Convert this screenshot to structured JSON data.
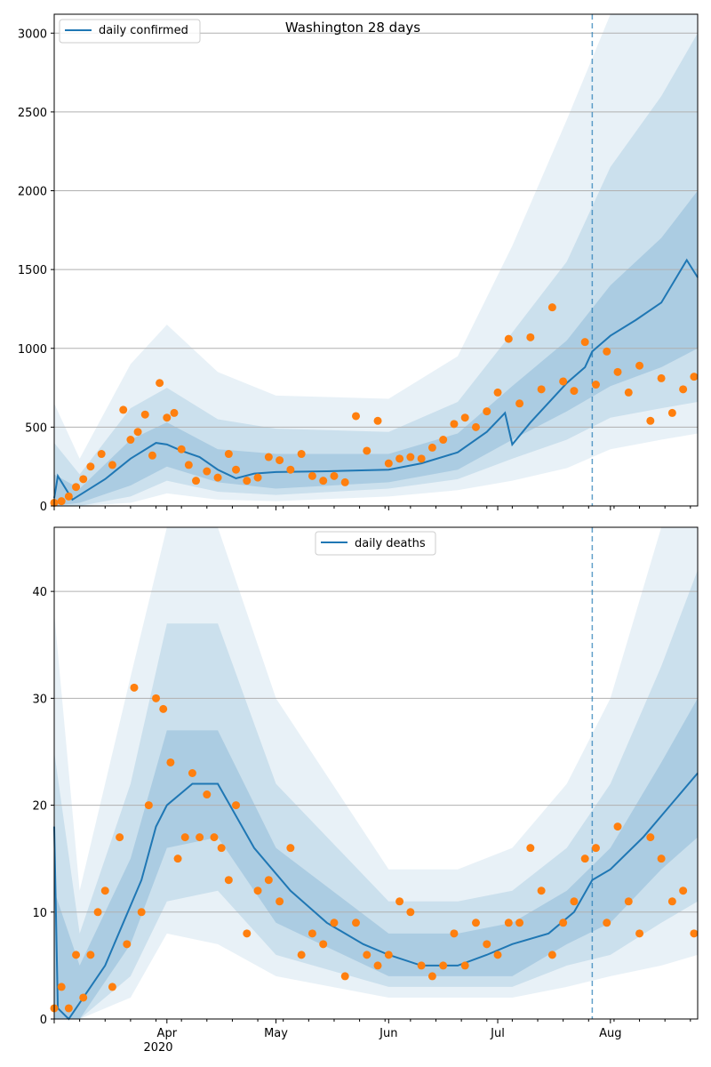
{
  "colors": {
    "line": "#1f77b4",
    "points": "#ff7f0e",
    "band": "#1f77b4",
    "grid": "#b0b0b0",
    "vline": "#1f77b4"
  },
  "chart_data": [
    {
      "type": "line",
      "title": "Washington 28 days",
      "legend_position": "top-left",
      "grid": "horizontal",
      "x_start_date": "2020-03-01",
      "x_end_date": "2020-08-25",
      "vline_date": "2020-07-27",
      "ylim": [
        0,
        3120
      ],
      "yticks": [
        0,
        500,
        1000,
        1500,
        2000,
        2500,
        3000
      ],
      "series": [
        {
          "name": "daily confirmed",
          "kind": "line",
          "x": [
            "2020-03-01",
            "2020-03-02",
            "2020-03-06",
            "2020-03-15",
            "2020-03-22",
            "2020-03-29",
            "2020-04-01",
            "2020-04-05",
            "2020-04-10",
            "2020-04-15",
            "2020-04-20",
            "2020-04-25",
            "2020-05-01",
            "2020-05-15",
            "2020-06-01",
            "2020-06-10",
            "2020-06-20",
            "2020-06-28",
            "2020-07-03",
            "2020-07-05",
            "2020-07-10",
            "2020-07-20",
            "2020-07-25",
            "2020-07-27",
            "2020-08-01",
            "2020-08-08",
            "2020-08-15",
            "2020-08-22",
            "2020-08-25"
          ],
          "y": [
            50,
            190,
            40,
            170,
            300,
            400,
            390,
            350,
            310,
            230,
            175,
            205,
            215,
            220,
            230,
            270,
            340,
            470,
            590,
            390,
            530,
            780,
            880,
            980,
            1080,
            1180,
            1290,
            1560,
            1450
          ]
        },
        {
          "name": "",
          "kind": "points",
          "x": [
            "2020-03-01",
            "2020-03-03",
            "2020-03-05",
            "2020-03-07",
            "2020-03-09",
            "2020-03-11",
            "2020-03-14",
            "2020-03-17",
            "2020-03-20",
            "2020-03-22",
            "2020-03-24",
            "2020-03-26",
            "2020-03-28",
            "2020-03-30",
            "2020-04-01",
            "2020-04-03",
            "2020-04-05",
            "2020-04-07",
            "2020-04-09",
            "2020-04-12",
            "2020-04-15",
            "2020-04-18",
            "2020-04-20",
            "2020-04-23",
            "2020-04-26",
            "2020-04-29",
            "2020-05-02",
            "2020-05-05",
            "2020-05-08",
            "2020-05-11",
            "2020-05-14",
            "2020-05-17",
            "2020-05-20",
            "2020-05-23",
            "2020-05-26",
            "2020-05-29",
            "2020-06-01",
            "2020-06-04",
            "2020-06-07",
            "2020-06-10",
            "2020-06-13",
            "2020-06-16",
            "2020-06-19",
            "2020-06-22",
            "2020-06-25",
            "2020-06-28",
            "2020-07-01",
            "2020-07-04",
            "2020-07-07",
            "2020-07-10",
            "2020-07-13",
            "2020-07-16",
            "2020-07-19",
            "2020-07-22",
            "2020-07-25",
            "2020-07-28",
            "2020-07-31",
            "2020-08-03",
            "2020-08-06",
            "2020-08-09",
            "2020-08-12",
            "2020-08-15",
            "2020-08-18",
            "2020-08-21",
            "2020-08-24"
          ],
          "y": [
            20,
            30,
            60,
            120,
            170,
            250,
            330,
            260,
            610,
            420,
            470,
            580,
            320,
            780,
            560,
            590,
            360,
            260,
            160,
            220,
            180,
            330,
            230,
            160,
            180,
            310,
            290,
            230,
            330,
            190,
            160,
            190,
            150,
            570,
            350,
            540,
            270,
            300,
            310,
            300,
            370,
            420,
            520,
            560,
            500,
            600,
            720,
            1060,
            650,
            1070,
            740,
            1260,
            790,
            730,
            1040,
            770,
            980,
            850,
            720,
            890,
            540,
            810,
            590,
            740,
            820
          ]
        }
      ],
      "bands": [
        {
          "x": [
            "2020-03-01",
            "2020-03-08",
            "2020-03-22",
            "2020-04-01",
            "2020-04-15",
            "2020-05-01",
            "2020-06-01",
            "2020-06-20",
            "2020-07-05",
            "2020-07-20",
            "2020-08-01",
            "2020-08-15",
            "2020-08-25"
          ],
          "lo": [
            0,
            20,
            130,
            250,
            150,
            110,
            150,
            230,
            420,
            600,
            760,
            880,
            1000
          ],
          "hi": [
            200,
            110,
            420,
            530,
            360,
            330,
            330,
            460,
            760,
            1050,
            1400,
            1700,
            2000
          ]
        },
        {
          "x": [
            "2020-03-01",
            "2020-03-08",
            "2020-03-22",
            "2020-04-01",
            "2020-04-15",
            "2020-05-01",
            "2020-06-01",
            "2020-06-20",
            "2020-07-05",
            "2020-07-20",
            "2020-08-01",
            "2020-08-15",
            "2020-08-25"
          ],
          "lo": [
            0,
            0,
            60,
            160,
            90,
            70,
            110,
            170,
            300,
            420,
            560,
            620,
            660
          ],
          "hi": [
            400,
            200,
            620,
            750,
            550,
            490,
            470,
            660,
            1100,
            1550,
            2150,
            2600,
            3000
          ]
        },
        {
          "x": [
            "2020-03-01",
            "2020-03-08",
            "2020-03-22",
            "2020-04-01",
            "2020-04-15",
            "2020-05-01",
            "2020-06-01",
            "2020-06-20",
            "2020-07-05",
            "2020-07-20",
            "2020-08-01",
            "2020-08-15",
            "2020-08-25"
          ],
          "lo": [
            0,
            0,
            20,
            80,
            40,
            30,
            60,
            100,
            160,
            240,
            360,
            420,
            460
          ],
          "hi": [
            650,
            300,
            900,
            1150,
            850,
            700,
            680,
            950,
            1650,
            2450,
            3120,
            3120,
            3120
          ]
        }
      ]
    },
    {
      "type": "line",
      "title": "",
      "legend_position": "top-center",
      "grid": "horizontal",
      "x_start_date": "2020-03-01",
      "x_end_date": "2020-08-25",
      "vline_date": "2020-07-27",
      "ylim": [
        0,
        46
      ],
      "yticks": [
        0,
        10,
        20,
        30,
        40
      ],
      "series": [
        {
          "name": "daily deaths",
          "kind": "line",
          "x": [
            "2020-03-01",
            "2020-03-02",
            "2020-03-05",
            "2020-03-15",
            "2020-03-25",
            "2020-03-29",
            "2020-04-01",
            "2020-04-08",
            "2020-04-15",
            "2020-04-25",
            "2020-05-05",
            "2020-05-15",
            "2020-05-25",
            "2020-06-01",
            "2020-06-10",
            "2020-06-20",
            "2020-06-28",
            "2020-07-05",
            "2020-07-15",
            "2020-07-22",
            "2020-07-27",
            "2020-08-01",
            "2020-08-10",
            "2020-08-20",
            "2020-08-25"
          ],
          "y": [
            18,
            1,
            0,
            5,
            13,
            18,
            20,
            22,
            22,
            16,
            12,
            9,
            7,
            6,
            5,
            5,
            6,
            7,
            8,
            10,
            13,
            14,
            17,
            21,
            23
          ]
        },
        {
          "name": "",
          "kind": "points",
          "x": [
            "2020-03-01",
            "2020-03-03",
            "2020-03-05",
            "2020-03-07",
            "2020-03-09",
            "2020-03-11",
            "2020-03-13",
            "2020-03-15",
            "2020-03-17",
            "2020-03-19",
            "2020-03-21",
            "2020-03-23",
            "2020-03-25",
            "2020-03-27",
            "2020-03-29",
            "2020-03-31",
            "2020-04-02",
            "2020-04-04",
            "2020-04-06",
            "2020-04-08",
            "2020-04-10",
            "2020-04-12",
            "2020-04-14",
            "2020-04-16",
            "2020-04-18",
            "2020-04-20",
            "2020-04-23",
            "2020-04-26",
            "2020-04-29",
            "2020-05-02",
            "2020-05-05",
            "2020-05-08",
            "2020-05-11",
            "2020-05-14",
            "2020-05-17",
            "2020-05-20",
            "2020-05-23",
            "2020-05-26",
            "2020-05-29",
            "2020-06-01",
            "2020-06-04",
            "2020-06-07",
            "2020-06-10",
            "2020-06-13",
            "2020-06-16",
            "2020-06-19",
            "2020-06-22",
            "2020-06-25",
            "2020-06-28",
            "2020-07-01",
            "2020-07-04",
            "2020-07-07",
            "2020-07-10",
            "2020-07-13",
            "2020-07-16",
            "2020-07-19",
            "2020-07-22",
            "2020-07-25",
            "2020-07-28",
            "2020-07-31",
            "2020-08-03",
            "2020-08-06",
            "2020-08-09",
            "2020-08-12",
            "2020-08-15",
            "2020-08-18",
            "2020-08-21",
            "2020-08-24"
          ],
          "y": [
            1,
            3,
            1,
            6,
            2,
            6,
            10,
            12,
            3,
            17,
            7,
            31,
            10,
            20,
            30,
            29,
            24,
            15,
            17,
            23,
            17,
            21,
            17,
            16,
            13,
            20,
            8,
            12,
            13,
            11,
            16,
            6,
            8,
            7,
            9,
            4,
            9,
            6,
            5,
            6,
            11,
            10,
            5,
            4,
            5,
            8,
            5,
            9,
            7,
            6,
            9,
            9,
            16,
            12,
            6,
            9,
            11,
            15,
            16,
            9,
            18,
            11,
            8,
            17,
            15,
            11,
            12,
            8
          ]
        }
      ],
      "bands": [
        {
          "x": [
            "2020-03-01",
            "2020-03-08",
            "2020-03-22",
            "2020-04-01",
            "2020-04-15",
            "2020-05-01",
            "2020-06-01",
            "2020-06-20",
            "2020-07-05",
            "2020-07-20",
            "2020-08-01",
            "2020-08-15",
            "2020-08-25"
          ],
          "lo": [
            0,
            0,
            7,
            16,
            17,
            9,
            4,
            4,
            4,
            7,
            9,
            14,
            17
          ],
          "hi": [
            12,
            5,
            15,
            27,
            27,
            16,
            8,
            8,
            9,
            12,
            16,
            24,
            30
          ]
        },
        {
          "x": [
            "2020-03-01",
            "2020-03-08",
            "2020-03-22",
            "2020-04-01",
            "2020-04-15",
            "2020-05-01",
            "2020-06-01",
            "2020-06-20",
            "2020-07-05",
            "2020-07-20",
            "2020-08-01",
            "2020-08-15",
            "2020-08-25"
          ],
          "lo": [
            0,
            0,
            4,
            11,
            12,
            6,
            3,
            3,
            3,
            5,
            6,
            9,
            11
          ],
          "hi": [
            25,
            8,
            22,
            37,
            37,
            22,
            11,
            11,
            12,
            16,
            22,
            33,
            42
          ]
        },
        {
          "x": [
            "2020-03-01",
            "2020-03-08",
            "2020-03-22",
            "2020-04-01",
            "2020-04-15",
            "2020-05-01",
            "2020-06-01",
            "2020-06-20",
            "2020-07-05",
            "2020-07-20",
            "2020-08-01",
            "2020-08-15",
            "2020-08-25"
          ],
          "lo": [
            0,
            0,
            2,
            8,
            7,
            4,
            2,
            2,
            2,
            3,
            4,
            5,
            6
          ],
          "hi": [
            38,
            12,
            32,
            46,
            46,
            30,
            14,
            14,
            16,
            22,
            30,
            46,
            46
          ]
        }
      ]
    }
  ],
  "x_axis": {
    "tick_labels": [
      {
        "date": "2020-04-01",
        "label": "Apr"
      },
      {
        "date": "2020-05-01",
        "label": "May"
      },
      {
        "date": "2020-06-01",
        "label": "Jun"
      },
      {
        "date": "2020-07-01",
        "label": "Jul"
      },
      {
        "date": "2020-08-01",
        "label": "Aug"
      }
    ],
    "year_label": "2020"
  }
}
